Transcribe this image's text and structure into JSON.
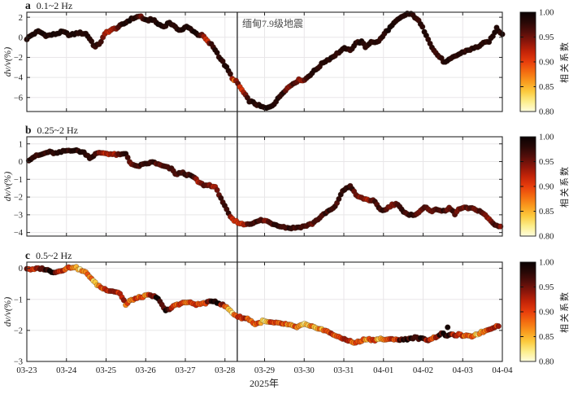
{
  "meta": {
    "xlabel": "2025年",
    "xtick_labels": [
      "03-23",
      "03-24",
      "03-25",
      "03-26",
      "03-27",
      "03-28",
      "03-29",
      "03-30",
      "03-31",
      "04-01",
      "04-02",
      "04-03",
      "04-04"
    ],
    "event": {
      "label": "缅甸7.9级地震",
      "day": 5.31
    },
    "colorbar": {
      "label": "相关系数",
      "tick_labels": [
        "1.00",
        "0.95",
        "0.90",
        "0.85",
        "0.80"
      ],
      "tick_values": [
        1.0,
        0.95,
        0.9,
        0.85,
        0.8
      ],
      "vmin": 0.8,
      "vmax": 1.0
    },
    "colors": {
      "text": "#1a1a1a",
      "grid": "#e8e6e8",
      "spine": "#262626",
      "event_line": "#4a4a4a"
    }
  },
  "chart_data": [
    {
      "id": "a",
      "type": "scatter",
      "panel_letter": "a",
      "freq_label": "0.1~2 Hz",
      "ylabel": "dv/v(%)",
      "xlim_days": [
        0,
        12
      ],
      "ylim": [
        -7.4,
        2.5
      ],
      "yticks": [
        2,
        0,
        -2,
        -4,
        -6
      ],
      "colormap": "hot_r",
      "points_day_dvv_corr": [
        [
          0.0,
          -0.15,
          0.99
        ],
        [
          0.15,
          0.3,
          0.985
        ],
        [
          0.3,
          0.6,
          0.99
        ],
        [
          0.5,
          0.15,
          0.985
        ],
        [
          0.7,
          0.3,
          0.99
        ],
        [
          0.9,
          0.55,
          0.985
        ],
        [
          1.1,
          0.2,
          0.99
        ],
        [
          1.3,
          0.45,
          0.985
        ],
        [
          1.5,
          0.35,
          0.99
        ],
        [
          1.63,
          -0.4,
          0.98
        ],
        [
          1.72,
          -1.0,
          0.975
        ],
        [
          1.85,
          -0.55,
          0.98
        ],
        [
          2.0,
          0.5,
          0.92
        ],
        [
          2.15,
          0.75,
          0.93
        ],
        [
          2.3,
          1.0,
          0.96
        ],
        [
          2.45,
          1.35,
          0.985
        ],
        [
          2.6,
          1.75,
          0.99
        ],
        [
          2.75,
          2.0,
          0.985
        ],
        [
          2.88,
          2.1,
          0.95
        ],
        [
          3.0,
          1.6,
          0.99
        ],
        [
          3.15,
          1.85,
          0.985
        ],
        [
          3.3,
          1.35,
          0.99
        ],
        [
          3.45,
          1.05,
          0.985
        ],
        [
          3.6,
          1.5,
          0.99
        ],
        [
          3.75,
          0.95,
          0.985
        ],
        [
          3.9,
          0.7,
          0.99
        ],
        [
          4.02,
          1.05,
          0.985
        ],
        [
          4.15,
          0.8,
          0.99
        ],
        [
          4.3,
          0.3,
          0.985
        ],
        [
          4.45,
          0.15,
          0.94
        ],
        [
          4.55,
          -0.4,
          0.91
        ],
        [
          4.65,
          -0.7,
          0.975
        ],
        [
          4.75,
          -1.2,
          0.98
        ],
        [
          4.85,
          -1.9,
          0.985
        ],
        [
          4.95,
          -2.5,
          0.98
        ],
        [
          5.05,
          -3.1,
          0.985
        ],
        [
          5.15,
          -3.8,
          0.975
        ],
        [
          5.22,
          -4.3,
          0.87
        ],
        [
          5.3,
          -4.45,
          0.97
        ],
        [
          5.4,
          -5.1,
          0.9
        ],
        [
          5.5,
          -5.7,
          0.93
        ],
        [
          5.6,
          -6.3,
          0.985
        ],
        [
          5.75,
          -6.6,
          0.98
        ],
        [
          5.9,
          -6.9,
          0.985
        ],
        [
          6.05,
          -7.1,
          0.99
        ],
        [
          6.2,
          -6.75,
          0.985
        ],
        [
          6.3,
          -6.35,
          0.98
        ],
        [
          6.4,
          -5.8,
          0.985
        ],
        [
          6.5,
          -5.3,
          0.975
        ],
        [
          6.6,
          -5.0,
          0.93
        ],
        [
          6.75,
          -4.5,
          0.975
        ],
        [
          6.9,
          -4.2,
          0.92
        ],
        [
          7.0,
          -4.3,
          0.95
        ],
        [
          7.1,
          -3.9,
          0.98
        ],
        [
          7.3,
          -3.2,
          0.985
        ],
        [
          7.38,
          -2.9,
          0.975
        ],
        [
          7.5,
          -2.45,
          0.98
        ],
        [
          7.7,
          -2.0,
          0.985
        ],
        [
          7.87,
          -1.5,
          0.98
        ],
        [
          8.05,
          -1.05,
          0.985
        ],
        [
          8.15,
          -1.4,
          0.975
        ],
        [
          8.3,
          -0.55,
          0.98
        ],
        [
          8.45,
          -0.45,
          0.985
        ],
        [
          8.55,
          -1.0,
          0.975
        ],
        [
          8.7,
          -0.35,
          0.98
        ],
        [
          8.8,
          -0.6,
          0.985
        ],
        [
          8.95,
          -0.1,
          0.98
        ],
        [
          9.05,
          0.5,
          0.985
        ],
        [
          9.2,
          1.1,
          0.99
        ],
        [
          9.35,
          1.7,
          0.985
        ],
        [
          9.5,
          2.1,
          0.99
        ],
        [
          9.6,
          2.35,
          0.985
        ],
        [
          9.72,
          2.25,
          0.98
        ],
        [
          9.85,
          1.85,
          0.975
        ],
        [
          9.95,
          1.2,
          0.98
        ],
        [
          10.05,
          0.5,
          0.985
        ],
        [
          10.15,
          -0.3,
          0.98
        ],
        [
          10.25,
          -1.2,
          0.975
        ],
        [
          10.35,
          -1.7,
          0.97
        ],
        [
          10.45,
          -2.1,
          0.975
        ],
        [
          10.55,
          -2.55,
          0.98
        ],
        [
          10.65,
          -2.3,
          0.985
        ],
        [
          10.8,
          -1.9,
          0.98
        ],
        [
          10.95,
          -1.6,
          0.985
        ],
        [
          11.1,
          -1.3,
          0.98
        ],
        [
          11.25,
          -1.15,
          0.985
        ],
        [
          11.4,
          -0.9,
          0.98
        ],
        [
          11.5,
          -0.65,
          0.985
        ],
        [
          11.65,
          -0.45,
          0.98
        ],
        [
          11.75,
          0.0,
          0.985
        ],
        [
          11.85,
          0.95,
          0.99
        ],
        [
          11.92,
          0.6,
          0.985
        ],
        [
          12.0,
          0.35,
          0.98
        ]
      ]
    },
    {
      "id": "b",
      "type": "scatter",
      "panel_letter": "b",
      "freq_label": "0.25~2 Hz",
      "ylabel": "dv/v(%)",
      "xlim_days": [
        0,
        12
      ],
      "ylim": [
        -4.2,
        1.4
      ],
      "yticks": [
        1,
        0,
        -1,
        -2,
        -3,
        -4
      ],
      "colormap": "hot_r",
      "points_day_dvv_corr": [
        [
          0.05,
          0.1,
          0.98
        ],
        [
          0.2,
          0.3,
          0.985
        ],
        [
          0.35,
          0.38,
          0.975
        ],
        [
          0.55,
          0.55,
          0.98
        ],
        [
          0.75,
          0.45,
          0.985
        ],
        [
          0.95,
          0.6,
          0.975
        ],
        [
          1.15,
          0.65,
          0.98
        ],
        [
          1.3,
          0.6,
          0.985
        ],
        [
          1.45,
          0.5,
          0.975
        ],
        [
          1.6,
          0.2,
          0.98
        ],
        [
          1.75,
          0.45,
          0.975
        ],
        [
          1.9,
          0.5,
          0.93
        ],
        [
          2.05,
          0.45,
          0.92
        ],
        [
          2.2,
          0.4,
          0.93
        ],
        [
          2.35,
          0.38,
          0.96
        ],
        [
          2.5,
          0.45,
          0.975
        ],
        [
          2.62,
          -0.1,
          0.94
        ],
        [
          2.75,
          -0.28,
          0.97
        ],
        [
          2.9,
          -0.2,
          0.975
        ],
        [
          3.05,
          -0.1,
          0.97
        ],
        [
          3.2,
          -0.02,
          0.975
        ],
        [
          3.35,
          -0.2,
          0.95
        ],
        [
          3.5,
          -0.3,
          0.97
        ],
        [
          3.65,
          -0.42,
          0.975
        ],
        [
          3.78,
          -0.75,
          0.97
        ],
        [
          3.9,
          -0.6,
          0.975
        ],
        [
          4.05,
          -0.75,
          0.97
        ],
        [
          4.2,
          -0.85,
          0.975
        ],
        [
          4.35,
          -1.2,
          0.92
        ],
        [
          4.5,
          -1.35,
          0.96
        ],
        [
          4.62,
          -1.32,
          0.94
        ],
        [
          4.75,
          -1.45,
          0.93
        ],
        [
          4.88,
          -1.95,
          0.97
        ],
        [
          5.0,
          -2.55,
          0.975
        ],
        [
          5.1,
          -3.0,
          0.97
        ],
        [
          5.2,
          -3.3,
          0.91
        ],
        [
          5.31,
          -3.4,
          0.9
        ],
        [
          5.45,
          -3.55,
          0.91
        ],
        [
          5.6,
          -3.5,
          0.96
        ],
        [
          5.75,
          -3.45,
          0.975
        ],
        [
          5.9,
          -3.3,
          0.97
        ],
        [
          6.05,
          -3.35,
          0.94
        ],
        [
          6.2,
          -3.5,
          0.97
        ],
        [
          6.35,
          -3.6,
          0.975
        ],
        [
          6.5,
          -3.7,
          0.97
        ],
        [
          6.65,
          -3.75,
          0.975
        ],
        [
          6.8,
          -3.72,
          0.97
        ],
        [
          7.0,
          -3.65,
          0.975
        ],
        [
          7.2,
          -3.5,
          0.95
        ],
        [
          7.4,
          -3.15,
          0.97
        ],
        [
          7.6,
          -2.8,
          0.975
        ],
        [
          7.77,
          -2.6,
          0.97
        ],
        [
          7.94,
          -1.76,
          0.975
        ],
        [
          8.08,
          -1.45,
          0.97
        ],
        [
          8.18,
          -1.38,
          0.975
        ],
        [
          8.3,
          -1.9,
          0.94
        ],
        [
          8.45,
          -2.06,
          0.95
        ],
        [
          8.6,
          -2.15,
          0.93
        ],
        [
          8.76,
          -2.22,
          0.96
        ],
        [
          8.9,
          -2.68,
          0.975
        ],
        [
          9.03,
          -2.75,
          0.97
        ],
        [
          9.2,
          -2.45,
          0.94
        ],
        [
          9.37,
          -2.38,
          0.96
        ],
        [
          9.5,
          -2.83,
          0.975
        ],
        [
          9.64,
          -3.05,
          0.97
        ],
        [
          9.78,
          -2.98,
          0.975
        ],
        [
          9.92,
          -2.83,
          0.95
        ],
        [
          10.06,
          -2.52,
          0.97
        ],
        [
          10.23,
          -2.83,
          0.94
        ],
        [
          10.37,
          -2.68,
          0.96
        ],
        [
          10.54,
          -2.83,
          0.975
        ],
        [
          10.67,
          -2.6,
          0.95
        ],
        [
          10.8,
          -2.95,
          0.97
        ],
        [
          10.9,
          -2.7,
          0.94
        ],
        [
          11.0,
          -2.62,
          0.95
        ],
        [
          11.15,
          -2.63,
          0.96
        ],
        [
          11.3,
          -2.68,
          0.95
        ],
        [
          11.45,
          -2.8,
          0.97
        ],
        [
          11.6,
          -3.1,
          0.93
        ],
        [
          11.75,
          -3.45,
          0.96
        ],
        [
          11.85,
          -3.62,
          0.97
        ],
        [
          11.95,
          -3.63,
          0.95
        ],
        [
          12.0,
          -3.58,
          0.96
        ]
      ]
    },
    {
      "id": "c",
      "type": "scatter",
      "panel_letter": "c",
      "freq_label": "0.5~2 Hz",
      "ylabel": "dv/v(%)",
      "xlim_days": [
        0,
        12
      ],
      "ylim": [
        -3.0,
        0.2
      ],
      "yticks": [
        0,
        -1,
        -2,
        -3
      ],
      "colormap": "hot_r",
      "outliers_day_dvv_corr": [
        [
          10.62,
          -1.9,
          0.995
        ]
      ],
      "points_day_dvv_corr": [
        [
          0.0,
          0.0,
          0.93
        ],
        [
          0.15,
          -0.05,
          0.91
        ],
        [
          0.3,
          0.0,
          0.95
        ],
        [
          0.45,
          -0.02,
          0.97
        ],
        [
          0.6,
          -0.1,
          0.99
        ],
        [
          0.75,
          -0.12,
          0.95
        ],
        [
          0.9,
          -0.05,
          0.92
        ],
        [
          1.05,
          0.02,
          0.9
        ],
        [
          1.2,
          0.05,
          0.86
        ],
        [
          1.35,
          -0.05,
          0.84
        ],
        [
          1.5,
          -0.15,
          0.88
        ],
        [
          1.62,
          -0.3,
          0.87
        ],
        [
          1.7,
          -0.45,
          0.81
        ],
        [
          1.8,
          -0.55,
          0.87
        ],
        [
          1.92,
          -0.65,
          0.9
        ],
        [
          2.05,
          -0.7,
          0.91
        ],
        [
          2.2,
          -0.74,
          0.92
        ],
        [
          2.33,
          -0.78,
          0.9
        ],
        [
          2.44,
          -1.0,
          0.97
        ],
        [
          2.5,
          -1.2,
          0.84
        ],
        [
          2.57,
          -1.08,
          0.9
        ],
        [
          2.67,
          -1.0,
          0.87
        ],
        [
          2.8,
          -0.96,
          0.91
        ],
        [
          2.95,
          -0.9,
          0.87
        ],
        [
          3.08,
          -0.87,
          0.9
        ],
        [
          3.22,
          -0.91,
          0.97
        ],
        [
          3.36,
          -1.04,
          0.99
        ],
        [
          3.5,
          -1.38,
          0.98
        ],
        [
          3.63,
          -1.3,
          0.93
        ],
        [
          3.75,
          -1.17,
          0.9
        ],
        [
          3.9,
          -1.13,
          0.91
        ],
        [
          4.04,
          -1.09,
          0.87
        ],
        [
          4.18,
          -1.13,
          0.9
        ],
        [
          4.3,
          -1.17,
          0.91
        ],
        [
          4.45,
          -1.13,
          0.87
        ],
        [
          4.6,
          -1.09,
          0.97
        ],
        [
          4.72,
          -1.04,
          0.99
        ],
        [
          4.86,
          -1.13,
          0.98
        ],
        [
          5.0,
          -1.22,
          0.88
        ],
        [
          5.1,
          -1.32,
          0.82
        ],
        [
          5.2,
          -1.45,
          0.85
        ],
        [
          5.31,
          -1.55,
          0.91
        ],
        [
          5.45,
          -1.6,
          0.9
        ],
        [
          5.6,
          -1.63,
          0.91
        ],
        [
          5.75,
          -1.8,
          0.88
        ],
        [
          5.85,
          -1.77,
          0.9
        ],
        [
          5.95,
          -1.7,
          0.81
        ],
        [
          6.1,
          -1.74,
          0.88
        ],
        [
          6.3,
          -1.77,
          0.9
        ],
        [
          6.5,
          -1.79,
          0.91
        ],
        [
          6.65,
          -1.84,
          0.85
        ],
        [
          6.8,
          -1.9,
          0.9
        ],
        [
          7.0,
          -1.8,
          0.82
        ],
        [
          7.15,
          -1.88,
          0.88
        ],
        [
          7.35,
          -1.92,
          0.85
        ],
        [
          7.5,
          -2.0,
          0.88
        ],
        [
          7.7,
          -2.1,
          0.91
        ],
        [
          7.87,
          -2.23,
          0.9
        ],
        [
          8.08,
          -2.3,
          0.91
        ],
        [
          8.24,
          -2.4,
          0.9
        ],
        [
          8.41,
          -2.36,
          0.92
        ],
        [
          8.55,
          -2.27,
          0.86
        ],
        [
          8.76,
          -2.31,
          0.91
        ],
        [
          8.92,
          -2.27,
          0.84
        ],
        [
          9.1,
          -2.31,
          0.91
        ],
        [
          9.27,
          -2.27,
          0.9
        ],
        [
          9.44,
          -2.31,
          0.97
        ],
        [
          9.62,
          -2.27,
          0.99
        ],
        [
          9.78,
          -2.23,
          0.97
        ],
        [
          9.95,
          -2.27,
          0.99
        ],
        [
          10.13,
          -2.3,
          0.93
        ],
        [
          10.29,
          -2.23,
          0.91
        ],
        [
          10.46,
          -2.1,
          0.98
        ],
        [
          10.6,
          -2.16,
          0.99
        ],
        [
          10.75,
          -2.15,
          0.93
        ],
        [
          10.9,
          -2.14,
          0.91
        ],
        [
          11.05,
          -2.18,
          0.9
        ],
        [
          11.2,
          -2.2,
          0.88
        ],
        [
          11.35,
          -2.12,
          0.84
        ],
        [
          11.5,
          -2.05,
          0.87
        ],
        [
          11.65,
          -1.97,
          0.9
        ],
        [
          11.8,
          -1.88,
          0.91
        ],
        [
          11.95,
          -1.84,
          0.92
        ]
      ]
    }
  ]
}
